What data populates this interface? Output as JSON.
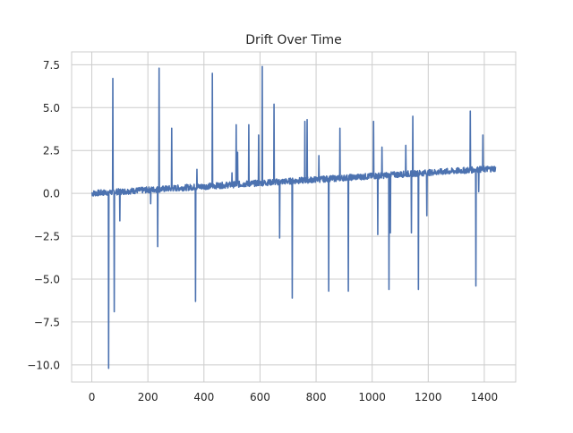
{
  "chart_data": {
    "type": "line",
    "title": "Drift Over Time",
    "xlabel": "",
    "ylabel": "",
    "xlim": [
      -72,
      1512
    ],
    "ylim": [
      -11.0,
      8.25
    ],
    "x_ticks": [
      0,
      200,
      400,
      600,
      800,
      1000,
      1200,
      1400
    ],
    "x_tick_labels": [
      "0",
      "200",
      "400",
      "600",
      "800",
      "1000",
      "1200",
      "1400"
    ],
    "y_ticks": [
      7.5,
      5.0,
      2.5,
      0.0,
      -2.5,
      -5.0,
      -7.5,
      -10.0
    ],
    "y_tick_labels": [
      "7.5",
      "5.0",
      "2.5",
      "0.0",
      "−2.5",
      "−5.0",
      "−7.5",
      "−10.0"
    ],
    "grid": true,
    "style": {
      "line_color": "#4c72b0",
      "grid_color": "#cccccc",
      "frame_color": "#cccccc",
      "background": "#ffffff"
    },
    "series": [
      {
        "x_range": [
          0,
          1440
        ],
        "baseline": {
          "start": 0.0,
          "end": 1.45
        },
        "noise_amplitude": 0.18,
        "spikes": [
          {
            "x": 60,
            "y": -10.2
          },
          {
            "x": 75,
            "y": 6.7
          },
          {
            "x": 80,
            "y": -6.9
          },
          {
            "x": 100,
            "y": -1.6
          },
          {
            "x": 210,
            "y": -0.6
          },
          {
            "x": 235,
            "y": -3.1
          },
          {
            "x": 240,
            "y": 7.3
          },
          {
            "x": 285,
            "y": 3.8
          },
          {
            "x": 370,
            "y": -6.3
          },
          {
            "x": 375,
            "y": 1.4
          },
          {
            "x": 430,
            "y": 7.0
          },
          {
            "x": 500,
            "y": 1.2
          },
          {
            "x": 515,
            "y": 4.0
          },
          {
            "x": 520,
            "y": 2.4
          },
          {
            "x": 560,
            "y": 4.0
          },
          {
            "x": 595,
            "y": 3.4
          },
          {
            "x": 608,
            "y": 7.4
          },
          {
            "x": 650,
            "y": 5.2
          },
          {
            "x": 670,
            "y": -2.6
          },
          {
            "x": 715,
            "y": -6.1
          },
          {
            "x": 760,
            "y": 4.2
          },
          {
            "x": 768,
            "y": 4.3
          },
          {
            "x": 810,
            "y": 2.2
          },
          {
            "x": 845,
            "y": -5.7
          },
          {
            "x": 885,
            "y": 3.8
          },
          {
            "x": 915,
            "y": -5.7
          },
          {
            "x": 1005,
            "y": 4.2
          },
          {
            "x": 1020,
            "y": -2.4
          },
          {
            "x": 1035,
            "y": 2.7
          },
          {
            "x": 1060,
            "y": -5.6
          },
          {
            "x": 1065,
            "y": -2.3
          },
          {
            "x": 1120,
            "y": 2.8
          },
          {
            "x": 1140,
            "y": -2.3
          },
          {
            "x": 1145,
            "y": 4.5
          },
          {
            "x": 1165,
            "y": -5.6
          },
          {
            "x": 1195,
            "y": -1.3
          },
          {
            "x": 1350,
            "y": 4.8
          },
          {
            "x": 1370,
            "y": -5.4
          },
          {
            "x": 1380,
            "y": 0.1
          },
          {
            "x": 1395,
            "y": 3.4
          }
        ]
      }
    ]
  }
}
